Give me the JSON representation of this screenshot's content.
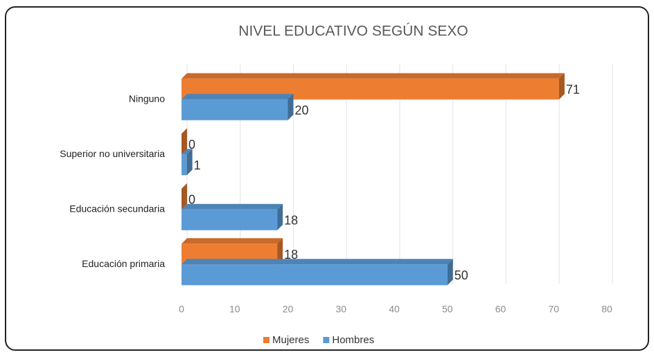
{
  "chart_data": {
    "type": "bar",
    "orientation": "horizontal",
    "title": "NIVEL EDUCATIVO SEGÚN SEXO",
    "categories": [
      "Ninguno",
      "Superior no universitaria",
      "Educación secundaria",
      "Educación primaria"
    ],
    "series": [
      {
        "name": "Mujeres",
        "color": "#ed7d31",
        "values": [
          71,
          0,
          0,
          18
        ]
      },
      {
        "name": "Hombres",
        "color": "#5b9bd5",
        "values": [
          20,
          1,
          18,
          50
        ]
      }
    ],
    "xlim": [
      0,
      80
    ],
    "xticks": [
      0,
      10,
      20,
      30,
      40,
      50,
      60,
      70,
      80
    ],
    "grid": true,
    "legend": "bottom"
  }
}
